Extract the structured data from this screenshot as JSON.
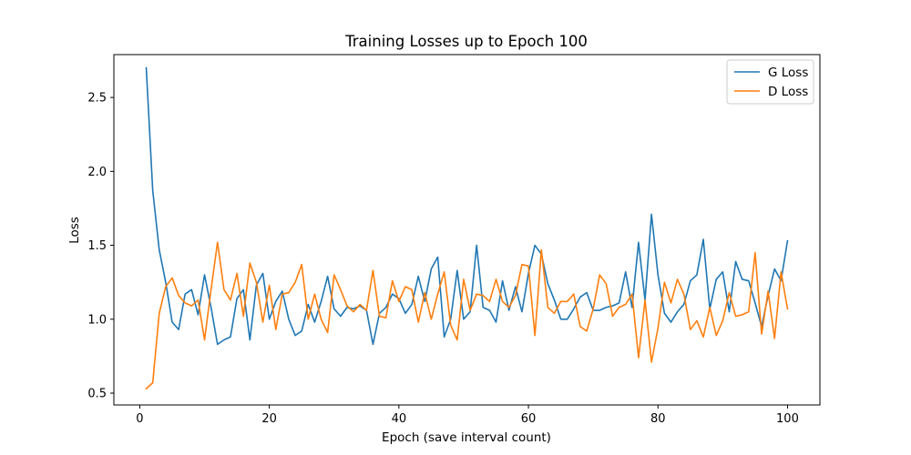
{
  "chart_data": {
    "type": "line",
    "title": "Training Losses up to Epoch 100",
    "xlabel": "Epoch (save interval count)",
    "ylabel": "Loss",
    "xlim": [
      -4,
      105
    ],
    "ylim": [
      0.42,
      2.79
    ],
    "xticks": [
      0,
      20,
      40,
      60,
      80,
      100
    ],
    "yticks": [
      0.5,
      1.0,
      1.5,
      2.0,
      2.5
    ],
    "ytick_labels": [
      "0.5",
      "1.0",
      "1.5",
      "2.0",
      "2.5"
    ],
    "grid": false,
    "legend_position": "top-right",
    "x": [
      1,
      2,
      3,
      4,
      5,
      6,
      7,
      8,
      9,
      10,
      11,
      12,
      13,
      14,
      15,
      16,
      17,
      18,
      19,
      20,
      21,
      22,
      23,
      24,
      25,
      26,
      27,
      28,
      29,
      30,
      31,
      32,
      33,
      34,
      35,
      36,
      37,
      38,
      39,
      40,
      41,
      42,
      43,
      44,
      45,
      46,
      47,
      48,
      49,
      50,
      51,
      52,
      53,
      54,
      55,
      56,
      57,
      58,
      59,
      60,
      61,
      62,
      63,
      64,
      65,
      66,
      67,
      68,
      69,
      70,
      71,
      72,
      73,
      74,
      75,
      76,
      77,
      78,
      79,
      80,
      81,
      82,
      83,
      84,
      85,
      86,
      87,
      88,
      89,
      90,
      91,
      92,
      93,
      94,
      95,
      96,
      97,
      98,
      99,
      100
    ],
    "series": [
      {
        "name": "G Loss",
        "color": "#1f77b4",
        "values": [
          2.7,
          1.87,
          1.47,
          1.25,
          0.98,
          0.93,
          1.17,
          1.2,
          1.03,
          1.3,
          1.08,
          0.83,
          0.86,
          0.88,
          1.14,
          1.2,
          0.86,
          1.23,
          1.31,
          1.0,
          1.12,
          1.19,
          1.0,
          0.89,
          0.92,
          1.1,
          0.98,
          1.12,
          1.29,
          1.07,
          1.02,
          1.08,
          1.07,
          1.09,
          1.06,
          0.83,
          1.04,
          1.08,
          1.17,
          1.14,
          1.04,
          1.1,
          1.29,
          1.12,
          1.34,
          1.42,
          0.88,
          1.0,
          1.33,
          1.0,
          1.05,
          1.5,
          1.08,
          1.06,
          0.98,
          1.26,
          1.06,
          1.22,
          1.05,
          1.31,
          1.5,
          1.44,
          1.24,
          1.13,
          1.0,
          1.0,
          1.07,
          1.15,
          1.18,
          1.06,
          1.06,
          1.08,
          1.09,
          1.11,
          1.32,
          1.08,
          1.52,
          1.13,
          1.71,
          1.3,
          1.04,
          0.98,
          1.05,
          1.1,
          1.26,
          1.3,
          1.54,
          1.07,
          1.27,
          1.32,
          1.05,
          1.39,
          1.27,
          1.26,
          1.11,
          0.95,
          1.16,
          1.34,
          1.26,
          1.53
        ]
      },
      {
        "name": "D Loss",
        "color": "#ff7f0e",
        "values": [
          0.53,
          0.57,
          1.04,
          1.22,
          1.28,
          1.16,
          1.11,
          1.09,
          1.13,
          0.86,
          1.2,
          1.52,
          1.2,
          1.13,
          1.31,
          1.02,
          1.38,
          1.25,
          0.98,
          1.23,
          0.93,
          1.17,
          1.18,
          1.25,
          1.37,
          1.0,
          1.17,
          1.0,
          0.91,
          1.3,
          1.2,
          1.09,
          1.05,
          1.1,
          1.06,
          1.33,
          1.02,
          1.01,
          1.26,
          1.12,
          1.22,
          1.2,
          0.98,
          1.18,
          1.0,
          1.17,
          1.32,
          0.96,
          0.86,
          1.27,
          1.06,
          1.17,
          1.16,
          1.12,
          1.27,
          1.12,
          1.08,
          1.16,
          1.37,
          1.36,
          0.89,
          1.47,
          1.08,
          1.04,
          1.12,
          1.12,
          1.17,
          0.95,
          0.92,
          1.07,
          1.3,
          1.24,
          1.02,
          1.08,
          1.1,
          1.17,
          0.74,
          1.13,
          0.71,
          0.94,
          1.25,
          1.11,
          1.27,
          1.17,
          0.93,
          0.99,
          0.88,
          1.08,
          0.89,
          0.99,
          1.18,
          1.02,
          1.03,
          1.05,
          1.45,
          0.9,
          1.19,
          0.87,
          1.32,
          1.07
        ]
      }
    ]
  }
}
